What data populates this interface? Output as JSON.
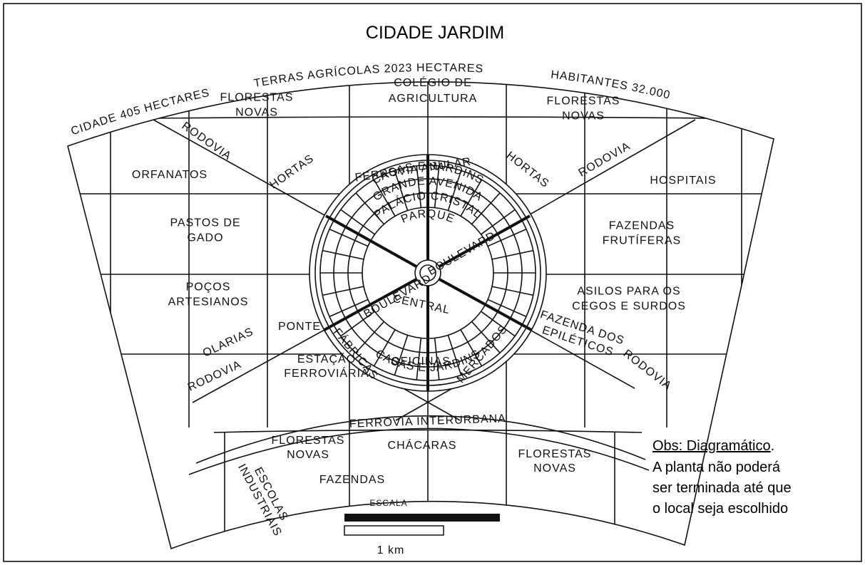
{
  "title": "CIDADE JARDIM",
  "banner": [
    "CIDADE 405 HECTARES",
    "TERRAS AGRÍCOLAS 2023 HECTARES",
    "HABITANTES 32.000"
  ],
  "zones": [
    {
      "lines": [
        "COLÉGIO DE",
        "AGRICULTURA"
      ]
    },
    {
      "lines": [
        "FLORESTAS",
        "NOVAS"
      ]
    },
    {
      "lines": [
        "FLORESTAS",
        "NOVAS"
      ]
    },
    {
      "lines": [
        "ORFANATOS"
      ]
    },
    {
      "lines": [
        "RODOVIA"
      ]
    },
    {
      "lines": [
        "HORTAS"
      ]
    },
    {
      "lines": [
        "FERROVIA ANULAR"
      ]
    },
    {
      "lines": [
        "HORTAS"
      ]
    },
    {
      "lines": [
        "RODOVIA"
      ]
    },
    {
      "lines": [
        "HOSPITAIS"
      ]
    },
    {
      "lines": [
        "PASTOS DE",
        "GADO"
      ]
    },
    {
      "lines": [
        "FAZENDAS",
        "FRUTÍFERAS"
      ]
    },
    {
      "lines": [
        "POÇOS",
        "ARTESIANOS"
      ]
    },
    {
      "lines": [
        "OLARIAS"
      ]
    },
    {
      "lines": [
        "PONTE"
      ]
    },
    {
      "lines": [
        "ASILOS PARA OS",
        "CEGOS E SURDOS"
      ]
    },
    {
      "lines": [
        "FAZENDA DOS",
        "EPILÉTICOS"
      ]
    },
    {
      "lines": [
        "RODOVIA"
      ]
    },
    {
      "lines": [
        "ESTAÇÃO",
        "FERROVIÁRIA"
      ]
    },
    {
      "lines": [
        "RODOVIA"
      ]
    },
    {
      "lines": [
        "FERROVIA INTERURBANA"
      ]
    },
    {
      "lines": [
        "FLORESTAS",
        "NOVAS"
      ]
    },
    {
      "lines": [
        "CHÁCARAS"
      ]
    },
    {
      "lines": [
        "FAZENDAS"
      ]
    },
    {
      "lines": [
        "FLORESTAS",
        "NOVAS"
      ]
    },
    {
      "lines": [
        "ESCOLAS",
        "INDUSTRIAIS"
      ]
    }
  ],
  "rings": [
    "CASAS E JARDINS",
    "GRANDE AVENIDA",
    "PALÁCIO CRISTAL",
    "PARQUE"
  ],
  "center": [
    "BOULEVARD",
    "BOULEVARD",
    "CENTRAL",
    "CASAS E JARDINS",
    "FÁBRICAS",
    "OFICINAS",
    "MERCADOS"
  ],
  "scale": {
    "label": "ESCALA",
    "length": "1 km"
  },
  "note": {
    "heading": "Obs: Diagramático",
    "heading_end": ".",
    "lines": [
      "A planta não poderá",
      "ser terminada até que",
      "o local seja escolhido"
    ]
  }
}
